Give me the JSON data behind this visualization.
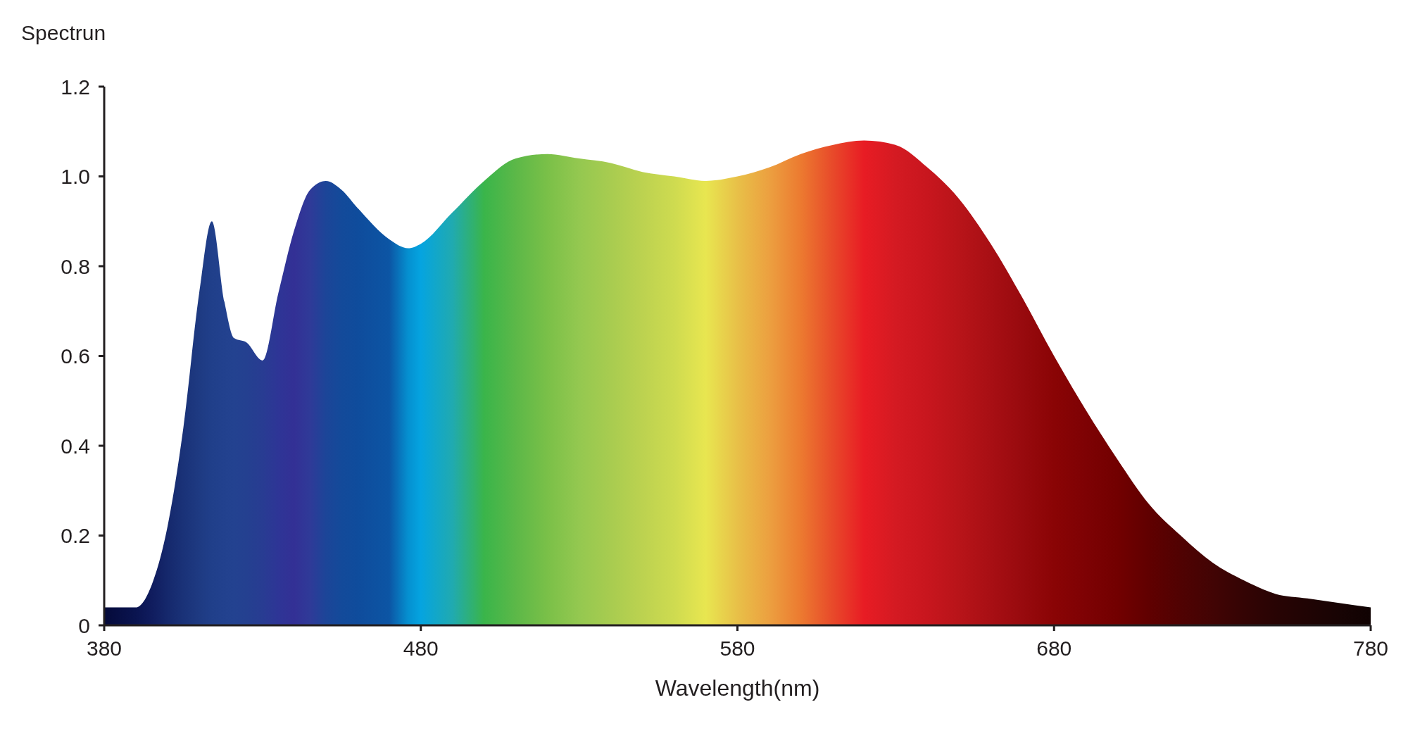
{
  "chart_data": {
    "type": "area",
    "xlabel": "Wavelength(nm)",
    "ylabel": "Spectrun",
    "x": [
      380,
      390,
      395,
      400,
      405,
      410,
      414,
      418,
      421,
      425,
      430,
      435,
      440,
      445,
      450,
      455,
      460,
      470,
      476,
      480,
      490,
      500,
      510,
      520,
      530,
      540,
      550,
      560,
      570,
      580,
      590,
      600,
      610,
      620,
      630,
      640,
      650,
      660,
      670,
      680,
      690,
      700,
      710,
      720,
      730,
      740,
      750,
      760,
      770,
      780
    ],
    "series": [
      {
        "values": [
          0.04,
          0.04,
          0.09,
          0.22,
          0.44,
          0.74,
          0.9,
          0.72,
          0.64,
          0.63,
          0.59,
          0.74,
          0.88,
          0.97,
          0.99,
          0.97,
          0.93,
          0.86,
          0.84,
          0.85,
          0.92,
          0.99,
          1.04,
          1.05,
          1.04,
          1.03,
          1.01,
          1.0,
          0.99,
          1.0,
          1.02,
          1.05,
          1.07,
          1.08,
          1.07,
          1.02,
          0.95,
          0.85,
          0.73,
          0.6,
          0.48,
          0.37,
          0.27,
          0.2,
          0.14,
          0.1,
          0.07,
          0.06,
          0.05,
          0.04
        ],
        "colors": [
          "#050a3a",
          "#0a1450",
          "#101c5e",
          "#15286c",
          "#1a3278",
          "#1e3a82",
          "#203f8a",
          "#22418e",
          "#234290",
          "#244090",
          "#283c92",
          "#2e3596",
          "#333095",
          "#2f3a98",
          "#1c4598",
          "#134a9a",
          "#0f4c9c",
          "#0c55a4",
          "#0590d0",
          "#05a4e0",
          "#20aab0",
          "#3ab54a",
          "#5cb848",
          "#7ac048",
          "#94c850",
          "#a8cc50",
          "#bcd250",
          "#cedb50",
          "#e8e650",
          "#e8c048",
          "#eca040",
          "#ec7a30",
          "#e84a2a",
          "#e81c24",
          "#d41a22",
          "#c8161e",
          "#b81419",
          "#a80f14",
          "#980a0e",
          "#8a0405",
          "#7e0204",
          "#720000",
          "#600000",
          "#500202",
          "#420404",
          "#340404",
          "#280404",
          "#200404",
          "#180404",
          "#100202"
        ]
      }
    ],
    "xlim": [
      380,
      780
    ],
    "xticks": [
      380,
      480,
      580,
      680,
      780
    ],
    "ylim": [
      0,
      1.2
    ],
    "yticks": [
      0,
      0.2,
      0.4,
      0.6,
      0.8,
      {
        "value": 1,
        "label": "1.0"
      },
      1.2
    ],
    "grid": false,
    "legend": false
  }
}
